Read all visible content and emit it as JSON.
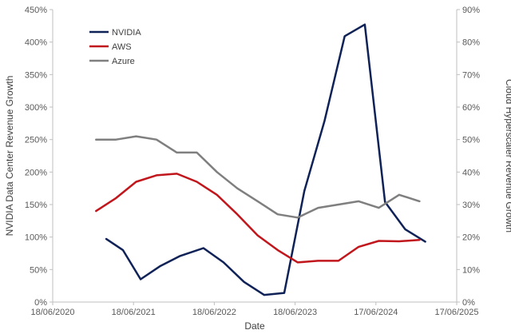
{
  "chart_data": {
    "type": "line",
    "title": "",
    "xlabel": "Date",
    "ylabel_left": "NVIDIA Data Center Revenue Growth",
    "ylabel_right": "Cloud Hyperscaler Revenue Growth",
    "x_ticks": [
      "18/06/2020",
      "18/06/2021",
      "18/06/2022",
      "18/06/2023",
      "17/06/2024",
      "17/06/2025"
    ],
    "x_range": [
      "2020-06-18",
      "2025-06-17"
    ],
    "ylim_left": [
      0,
      450
    ],
    "ylim_right": [
      0,
      90
    ],
    "y_ticks_left": [
      "0%",
      "50%",
      "100%",
      "150%",
      "200%",
      "250%",
      "300%",
      "350%",
      "400%",
      "450%"
    ],
    "y_ticks_right": [
      "0%",
      "10%",
      "20%",
      "30%",
      "40%",
      "50%",
      "60%",
      "70%",
      "80%",
      "90%"
    ],
    "grid": false,
    "legend_position": "top-left",
    "series": [
      {
        "name": "NVIDIA",
        "axis": "left",
        "color": "#0f2257",
        "points": [
          {
            "x": "2021-02-15",
            "y": 97
          },
          {
            "x": "2021-05-01",
            "y": 80
          },
          {
            "x": "2021-07-20",
            "y": 35
          },
          {
            "x": "2021-10-15",
            "y": 55
          },
          {
            "x": "2022-01-15",
            "y": 71
          },
          {
            "x": "2022-04-30",
            "y": 83
          },
          {
            "x": "2022-07-30",
            "y": 61
          },
          {
            "x": "2022-10-30",
            "y": 31
          },
          {
            "x": "2023-01-29",
            "y": 11
          },
          {
            "x": "2023-04-30",
            "y": 14
          },
          {
            "x": "2023-07-30",
            "y": 171
          },
          {
            "x": "2023-10-29",
            "y": 279
          },
          {
            "x": "2024-01-28",
            "y": 409
          },
          {
            "x": "2024-04-28",
            "y": 427
          },
          {
            "x": "2024-07-28",
            "y": 154
          },
          {
            "x": "2024-10-27",
            "y": 112
          },
          {
            "x": "2025-01-26",
            "y": 93
          }
        ]
      },
      {
        "name": "AWS",
        "axis": "right",
        "color": "#c0161c",
        "points": [
          {
            "x": "2020-12-31",
            "y": 28
          },
          {
            "x": "2021-03-31",
            "y": 32
          },
          {
            "x": "2021-06-30",
            "y": 37
          },
          {
            "x": "2021-09-30",
            "y": 39
          },
          {
            "x": "2021-12-31",
            "y": 39.5
          },
          {
            "x": "2022-03-31",
            "y": 37
          },
          {
            "x": "2022-06-30",
            "y": 33
          },
          {
            "x": "2022-09-30",
            "y": 27
          },
          {
            "x": "2022-12-31",
            "y": 20.5
          },
          {
            "x": "2023-03-31",
            "y": 16
          },
          {
            "x": "2023-06-30",
            "y": 12.2
          },
          {
            "x": "2023-09-30",
            "y": 12.7
          },
          {
            "x": "2023-12-31",
            "y": 12.7
          },
          {
            "x": "2024-03-31",
            "y": 17
          },
          {
            "x": "2024-06-30",
            "y": 18.8
          },
          {
            "x": "2024-09-30",
            "y": 18.7
          },
          {
            "x": "2024-12-31",
            "y": 19.1
          }
        ]
      },
      {
        "name": "Azure",
        "axis": "right",
        "color": "#7f7f7f",
        "points": [
          {
            "x": "2020-12-31",
            "y": 50
          },
          {
            "x": "2021-03-31",
            "y": 50
          },
          {
            "x": "2021-06-30",
            "y": 51
          },
          {
            "x": "2021-09-30",
            "y": 50
          },
          {
            "x": "2021-12-31",
            "y": 46
          },
          {
            "x": "2022-03-31",
            "y": 46
          },
          {
            "x": "2022-06-30",
            "y": 40
          },
          {
            "x": "2022-09-30",
            "y": 35
          },
          {
            "x": "2022-12-31",
            "y": 31
          },
          {
            "x": "2023-03-31",
            "y": 27
          },
          {
            "x": "2023-06-30",
            "y": 26
          },
          {
            "x": "2023-09-30",
            "y": 29
          },
          {
            "x": "2023-12-31",
            "y": 30
          },
          {
            "x": "2024-03-31",
            "y": 31
          },
          {
            "x": "2024-06-30",
            "y": 29
          },
          {
            "x": "2024-09-30",
            "y": 33
          },
          {
            "x": "2024-12-31",
            "y": 31
          }
        ]
      }
    ]
  }
}
